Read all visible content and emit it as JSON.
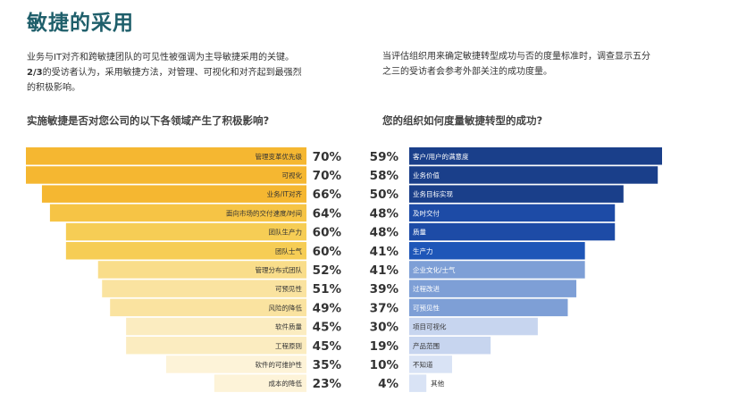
{
  "title": "敏捷的采用",
  "intro_left": {
    "line1": "业务与IT对齐和跨敏捷团队的可见性被强调为主导敏捷采用的关键。",
    "line2_bold": "2/3",
    "line2_rest": "的受访者认为，采用敏捷方法，对管理、可视化和对齐起到最强烈",
    "line3": "的积极影响。"
  },
  "intro_right": {
    "line1": "当评估组织用来确定敏捷转型成功与否的度量标准时，调查显示五分",
    "line2": "之三的受访者会参考外部关注的成功度量。"
  },
  "question_left": "实施敏捷是否对您公司的以下各领域产生了积极影响?",
  "question_right": "您的组织如何度量敏捷转型的成功?",
  "chart_data": [
    {
      "type": "bar",
      "orientation": "horizontal",
      "title": "实施敏捷是否对您公司的以下各领域产生了积极影响?",
      "categories": [
        "管理变革优先级",
        "可视化",
        "业务/IT对齐",
        "面向市场的交付速度/时间",
        "团队生产力",
        "团队士气",
        "管理分布式团队",
        "可预见性",
        "风险的降低",
        "软件质量",
        "工程原则",
        "软件的可维护性",
        "成本的降低"
      ],
      "values": [
        70,
        70,
        66,
        64,
        60,
        60,
        52,
        51,
        49,
        45,
        45,
        35,
        23
      ],
      "value_labels": [
        "70%",
        "70%",
        "66%",
        "64%",
        "60%",
        "60%",
        "52%",
        "51%",
        "49%",
        "45%",
        "45%",
        "35%",
        "23%"
      ],
      "colors": [
        "#f5b731",
        "#f5b731",
        "#f5b731",
        "#f6c445",
        "#f6cd55",
        "#f6cd55",
        "#f9dd8a",
        "#fae3a0",
        "#fae3a0",
        "#fbecc0",
        "#fbecc0",
        "#fdf3d8",
        "#fdf3d8"
      ],
      "xlim": [
        0,
        100
      ]
    },
    {
      "type": "bar",
      "orientation": "horizontal",
      "title": "您的组织如何度量敏捷转型的成功?",
      "categories": [
        "客户/用户的满意度",
        "业务价值",
        "业务目标实现",
        "及时交付",
        "质量",
        "生产力",
        "企业文化/士气",
        "过程改进",
        "可预见性",
        "项目可视化",
        "产品范围",
        "不知道",
        "其他"
      ],
      "values": [
        59,
        58,
        50,
        48,
        48,
        41,
        41,
        39,
        37,
        30,
        19,
        10,
        4
      ],
      "value_labels": [
        "59%",
        "58%",
        "50%",
        "48%",
        "48%",
        "41%",
        "41%",
        "39%",
        "37%",
        "30%",
        "19%",
        "10%",
        "4%"
      ],
      "colors": [
        "#1a3f8a",
        "#1a3f8a",
        "#1a3f8a",
        "#1d4ba6",
        "#1d4ba6",
        "#1e56b8",
        "#7e9fd6",
        "#7e9fd6",
        "#7e9fd6",
        "#c7d5ef",
        "#c7d5ef",
        "#d9e3f5",
        "#d9e3f5"
      ],
      "xlim": [
        0,
        100
      ]
    }
  ]
}
